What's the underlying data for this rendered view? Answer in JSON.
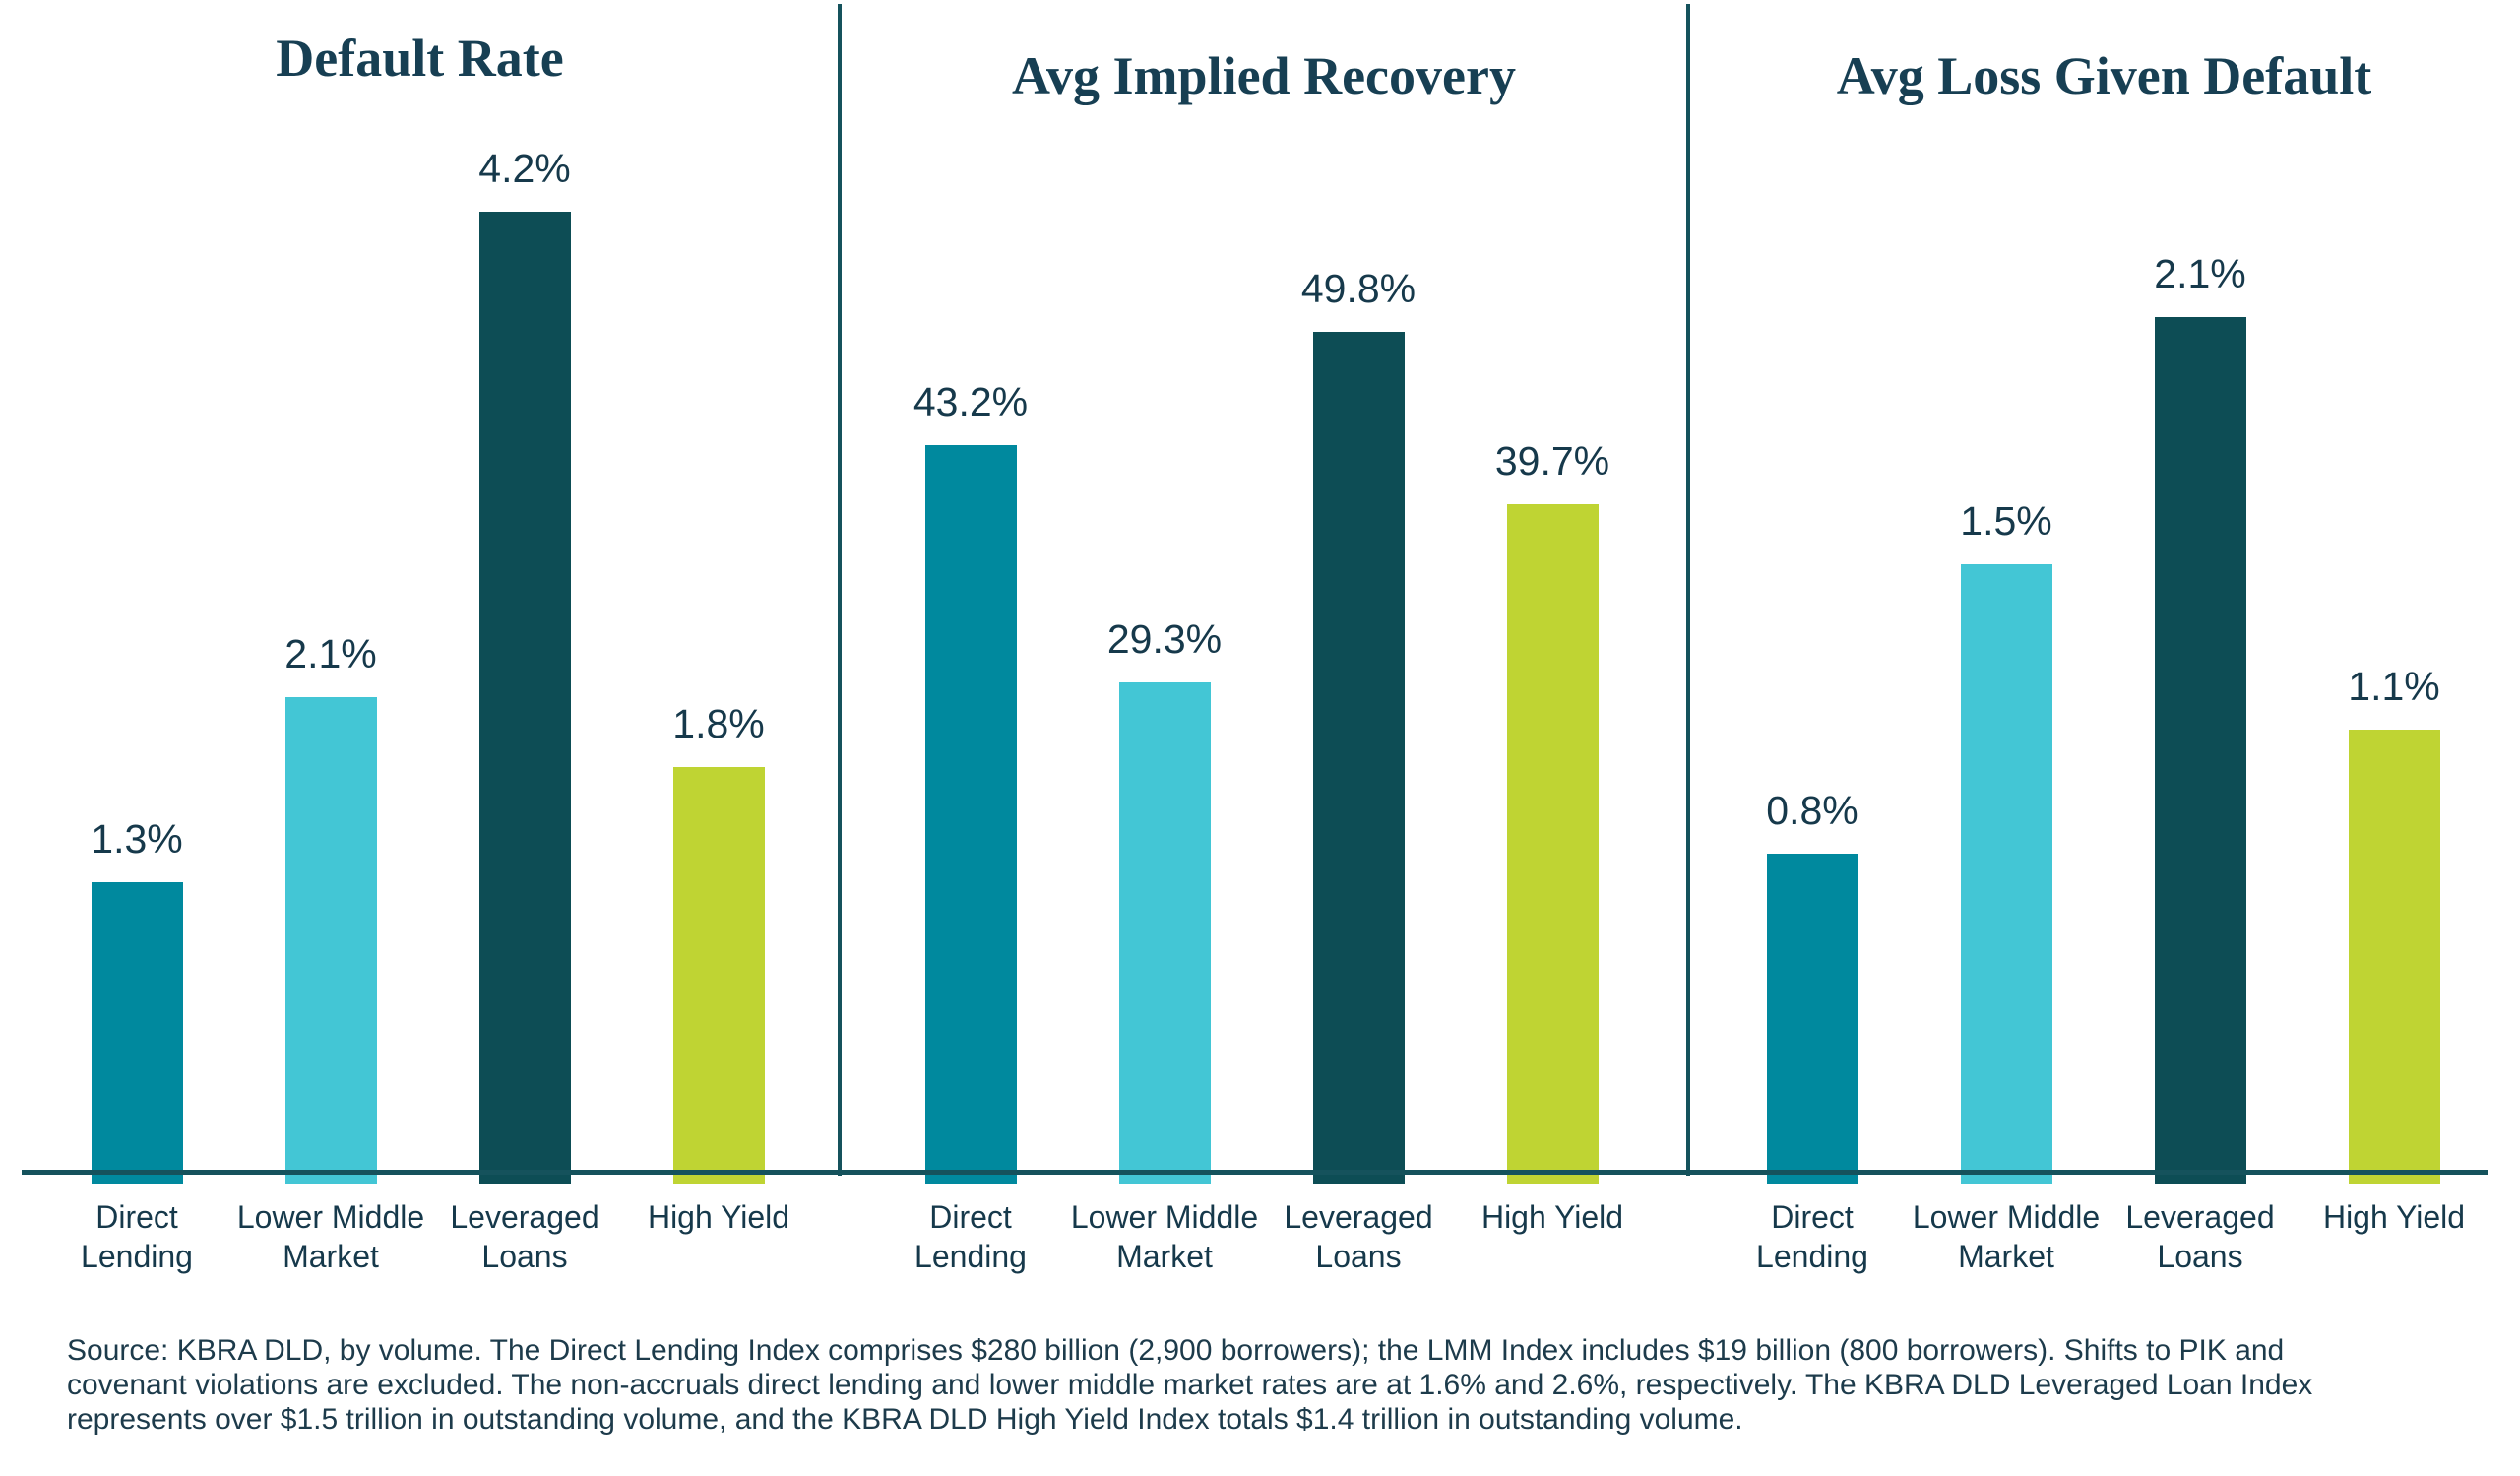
{
  "chart_data": [
    {
      "type": "bar",
      "title": "Default Rate",
      "categories": [
        "Direct Lending",
        "Lower Middle Market",
        "Leveraged Loans",
        "High Yield"
      ],
      "values": [
        1.3,
        2.1,
        4.2,
        1.8
      ],
      "value_labels": [
        "1.3%",
        "2.1%",
        "4.2%",
        "1.8%"
      ],
      "tick_labels": [
        "Direct\nLending",
        "Lower Middle\nMarket",
        "Leveraged\nLoans",
        "High Yield"
      ],
      "unit": "%",
      "ylim": [
        0,
        4.3
      ],
      "grid": false,
      "legend": false
    },
    {
      "type": "bar",
      "title": "Avg Implied Recovery",
      "categories": [
        "Direct Lending",
        "Lower Middle Market",
        "Leveraged Loans",
        "High Yield"
      ],
      "values": [
        43.2,
        29.3,
        49.8,
        39.7
      ],
      "value_labels": [
        "43.2%",
        "29.3%",
        "49.8%",
        "39.7%"
      ],
      "tick_labels": [
        "Direct\nLending",
        "Lower Middle\nMarket",
        "Leveraged\nLoans",
        "High Yield"
      ],
      "unit": "%",
      "ylim": [
        0,
        58
      ],
      "grid": false,
      "legend": false
    },
    {
      "type": "bar",
      "title": "Avg Loss Given Default",
      "categories": [
        "Direct Lending",
        "Lower Middle Market",
        "Leveraged Loans",
        "High Yield"
      ],
      "values": [
        0.8,
        1.5,
        2.1,
        1.1
      ],
      "value_labels": [
        "0.8%",
        "1.5%",
        "2.1%",
        "1.1%"
      ],
      "tick_labels": [
        "Direct\nLending",
        "Lower Middle\nMarket",
        "Leveraged\nLoans",
        "High Yield"
      ],
      "unit": "%",
      "ylim": [
        0,
        2.4
      ],
      "grid": false,
      "legend": false
    }
  ],
  "colors": {
    "bar_series": [
      "#00899E",
      "#43C6D5",
      "#0D4D55",
      "#BFD433"
    ],
    "axis_line": "#15525C",
    "title_text": "#173F53",
    "label_text": "#16394B"
  },
  "source_note": "Source: KBRA DLD, by volume. The Direct Lending Index comprises $280 billion (2,900 borrowers); the LMM Index includes $19 billion (800 borrowers). Shifts to PIK and\ncovenant violations are excluded. The non-accruals direct lending and lower middle market rates are at 1.6% and 2.6%, respectively. The KBRA DLD Leveraged Loan Index\nrepresents over $1.5 trillion in outstanding volume, and the KBRA DLD High Yield Index totals $1.4 trillion in outstanding volume."
}
